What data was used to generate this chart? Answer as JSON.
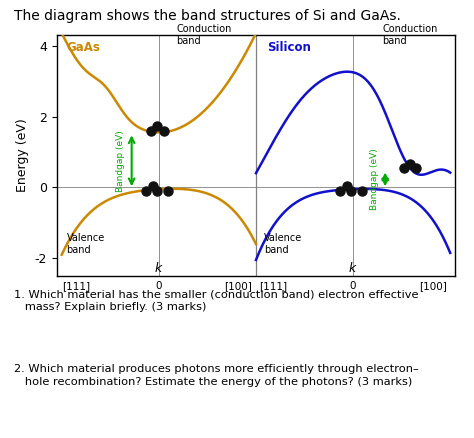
{
  "title": "The diagram shows the band structures of Si and GaAs.",
  "title_fontsize": 10,
  "ylabel": "Energy (eV)",
  "ylim": [
    -2.5,
    4.3
  ],
  "yticks": [
    -2,
    0,
    2,
    4
  ],
  "gaas_color": "#CC8800",
  "silicon_color": "#1111CC",
  "bandgap_arrow_color": "#00AA00",
  "dot_color": "#111111",
  "bg_color": "#ffffff",
  "question1": "1. Which material has the smaller (conduction band) electron effective\n   mass? Explain briefly. (3 marks)",
  "question2": "2. Which material produces photons more efficiently through electron–\n   hole recombination? Estimate the energy of the photons? (3 marks)"
}
